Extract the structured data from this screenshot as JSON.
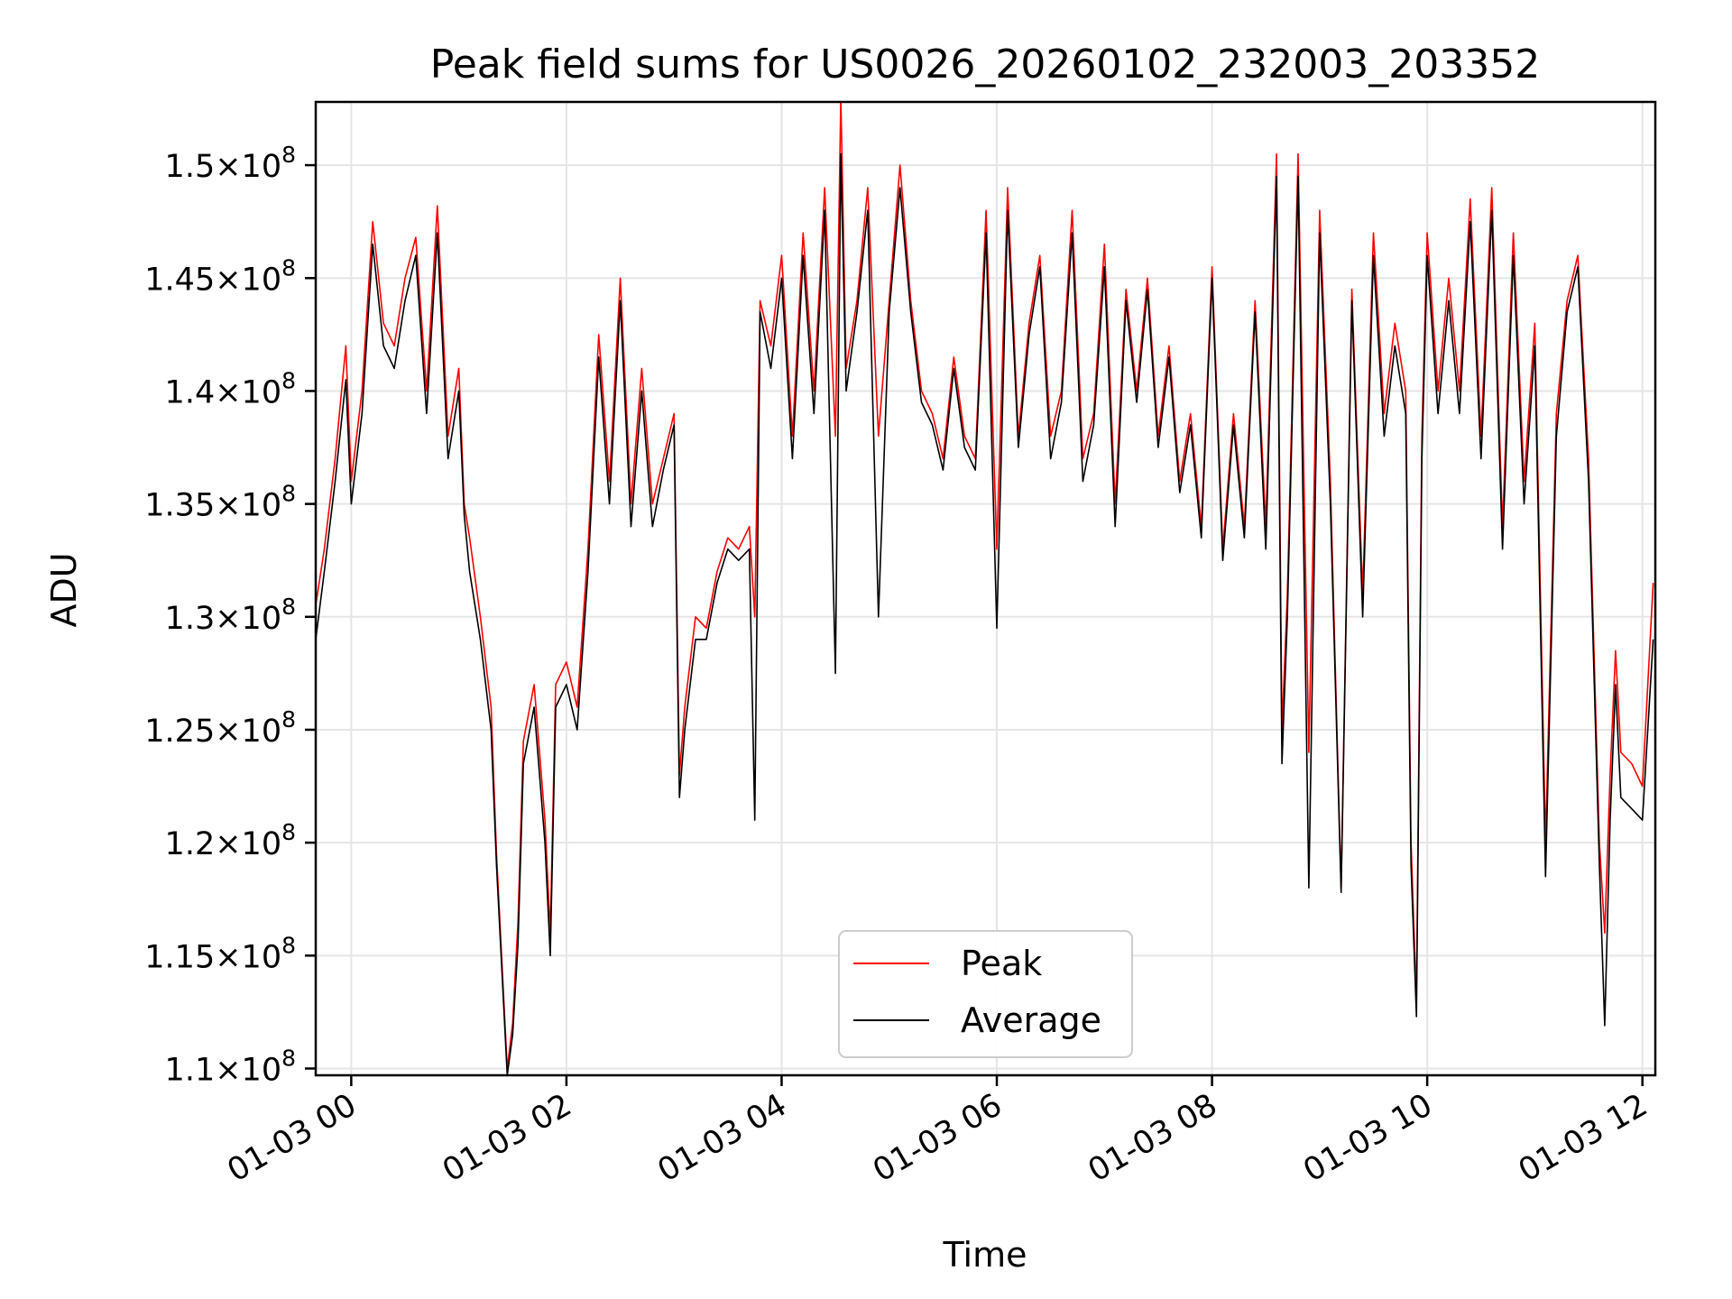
{
  "chart_data": {
    "type": "line",
    "title": "Peak field sums for US0026_20260102_232003_203352",
    "xlabel": "Time",
    "ylabel": "ADU",
    "grid": true,
    "legend_placement": "lower-center",
    "x_unit": "hours since 01-03 00:00",
    "xlim": [
      -0.33,
      12.12
    ],
    "ylim": [
      109700000.0,
      152800000.0
    ],
    "x_ticks": [
      {
        "value": 0,
        "label": "01-03 00"
      },
      {
        "value": 2,
        "label": "01-03 02"
      },
      {
        "value": 4,
        "label": "01-03 04"
      },
      {
        "value": 6,
        "label": "01-03 06"
      },
      {
        "value": 8,
        "label": "01-03 08"
      },
      {
        "value": 10,
        "label": "01-03 10"
      },
      {
        "value": 12,
        "label": "01-03 12"
      }
    ],
    "y_ticks": [
      {
        "value": 110000000.0,
        "mantissa": "1.1",
        "base": "10",
        "exp": "8"
      },
      {
        "value": 115000000.0,
        "mantissa": "1.15",
        "base": "10",
        "exp": "8"
      },
      {
        "value": 120000000.0,
        "mantissa": "1.2",
        "base": "10",
        "exp": "8"
      },
      {
        "value": 125000000.0,
        "mantissa": "1.25",
        "base": "10",
        "exp": "8"
      },
      {
        "value": 130000000.0,
        "mantissa": "1.3",
        "base": "10",
        "exp": "8"
      },
      {
        "value": 135000000.0,
        "mantissa": "1.35",
        "base": "10",
        "exp": "8"
      },
      {
        "value": 140000000.0,
        "mantissa": "1.4",
        "base": "10",
        "exp": "8"
      },
      {
        "value": 145000000.0,
        "mantissa": "1.45",
        "base": "10",
        "exp": "8"
      },
      {
        "value": 150000000.0,
        "mantissa": "1.5",
        "base": "10",
        "exp": "8"
      }
    ],
    "legend": [
      {
        "name": "Peak",
        "color": "#ff0000"
      },
      {
        "name": "Average",
        "color": "#000000"
      }
    ],
    "x": [
      -0.33,
      -0.25,
      -0.15,
      -0.05,
      0.0,
      0.1,
      0.2,
      0.3,
      0.4,
      0.5,
      0.6,
      0.7,
      0.8,
      0.9,
      1.0,
      1.05,
      1.1,
      1.2,
      1.3,
      1.35,
      1.45,
      1.5,
      1.55,
      1.6,
      1.7,
      1.8,
      1.85,
      1.9,
      2.0,
      2.1,
      2.2,
      2.3,
      2.4,
      2.5,
      2.6,
      2.7,
      2.8,
      2.9,
      3.0,
      3.05,
      3.1,
      3.2,
      3.3,
      3.4,
      3.5,
      3.6,
      3.7,
      3.75,
      3.8,
      3.9,
      4.0,
      4.1,
      4.2,
      4.3,
      4.4,
      4.5,
      4.55,
      4.6,
      4.7,
      4.8,
      4.9,
      5.0,
      5.1,
      5.2,
      5.3,
      5.4,
      5.5,
      5.6,
      5.7,
      5.8,
      5.9,
      6.0,
      6.1,
      6.2,
      6.3,
      6.4,
      6.5,
      6.6,
      6.7,
      6.8,
      6.9,
      7.0,
      7.1,
      7.2,
      7.3,
      7.4,
      7.5,
      7.6,
      7.7,
      7.8,
      7.9,
      8.0,
      8.1,
      8.2,
      8.3,
      8.4,
      8.5,
      8.6,
      8.65,
      8.7,
      8.8,
      8.9,
      9.0,
      9.1,
      9.2,
      9.3,
      9.4,
      9.5,
      9.6,
      9.7,
      9.8,
      9.85,
      9.9,
      9.95,
      10.0,
      10.1,
      10.2,
      10.3,
      10.4,
      10.5,
      10.6,
      10.7,
      10.8,
      10.9,
      11.0,
      11.1,
      11.2,
      11.3,
      11.4,
      11.5,
      11.6,
      11.65,
      11.7,
      11.75,
      11.8,
      11.9,
      12.0,
      12.1
    ],
    "series": [
      {
        "name": "Peak",
        "color": "#ff0000",
        "values": [
          130500000.0,
          133000000.0,
          137000000.0,
          142000000.0,
          136000000.0,
          140000000.0,
          147500000.0,
          143000000.0,
          142000000.0,
          145000000.0,
          146800000.0,
          140000000.0,
          148200000.0,
          138000000.0,
          141000000.0,
          135000000.0,
          133500000.0,
          130000000.0,
          126000000.0,
          119500000.0,
          110000000.0,
          112000000.0,
          116500000.0,
          124500000.0,
          127000000.0,
          121000000.0,
          116000000.0,
          127000000.0,
          128000000.0,
          126000000.0,
          133000000.0,
          142500000.0,
          136000000.0,
          145000000.0,
          135000000.0,
          141000000.0,
          135000000.0,
          137000000.0,
          139000000.0,
          123000000.0,
          126000000.0,
          130000000.0,
          129500000.0,
          132000000.0,
          133500000.0,
          133000000.0,
          134000000.0,
          130000000.0,
          144000000.0,
          142000000.0,
          146000000.0,
          138000000.0,
          147000000.0,
          140000000.0,
          149000000.0,
          138000000.0,
          153000000.0,
          141000000.0,
          144000000.0,
          149000000.0,
          138000000.0,
          144000000.0,
          150000000.0,
          144000000.0,
          140000000.0,
          139000000.0,
          137000000.0,
          141500000.0,
          138000000.0,
          137000000.0,
          148000000.0,
          133000000.0,
          149000000.0,
          138000000.0,
          143000000.0,
          146000000.0,
          138000000.0,
          140000000.0,
          148000000.0,
          137000000.0,
          139000000.0,
          146500000.0,
          135000000.0,
          144500000.0,
          140000000.0,
          145000000.0,
          138000000.0,
          142000000.0,
          136000000.0,
          139000000.0,
          134000000.0,
          145500000.0,
          133000000.0,
          139000000.0,
          134000000.0,
          144000000.0,
          134000000.0,
          150500000.0,
          125000000.0,
          131000000.0,
          150500000.0,
          124000000.0,
          148000000.0,
          136000000.0,
          118000000.0,
          144500000.0,
          131000000.0,
          147000000.0,
          139000000.0,
          143000000.0,
          140000000.0,
          120000000.0,
          113000000.0,
          138000000.0,
          147000000.0,
          140000000.0,
          145000000.0,
          140000000.0,
          148500000.0,
          138000000.0,
          149000000.0,
          134000000.0,
          147000000.0,
          136000000.0,
          143000000.0,
          120000000.0,
          139000000.0,
          144000000.0,
          146000000.0,
          137000000.0,
          120000000.0,
          116000000.0,
          123000000.0,
          128500000.0,
          124000000.0,
          123500000.0,
          122500000.0,
          131500000.0
        ]
      },
      {
        "name": "Average",
        "color": "#000000",
        "values": [
          129000000.0,
          132000000.0,
          136000000.0,
          140500000.0,
          135000000.0,
          139000000.0,
          146500000.0,
          142000000.0,
          141000000.0,
          144000000.0,
          146000000.0,
          139000000.0,
          147000000.0,
          137000000.0,
          140000000.0,
          134500000.0,
          132000000.0,
          129000000.0,
          125000000.0,
          119000000.0,
          109700000.0,
          111500000.0,
          115500000.0,
          123500000.0,
          126000000.0,
          120000000.0,
          115000000.0,
          126000000.0,
          127000000.0,
          125000000.0,
          132000000.0,
          141500000.0,
          135000000.0,
          144000000.0,
          134000000.0,
          140000000.0,
          134000000.0,
          136500000.0,
          138500000.0,
          122000000.0,
          125000000.0,
          129000000.0,
          129000000.0,
          131500000.0,
          133000000.0,
          132500000.0,
          133000000.0,
          121000000.0,
          143500000.0,
          141000000.0,
          145000000.0,
          137000000.0,
          146000000.0,
          139000000.0,
          148000000.0,
          127500000.0,
          150500000.0,
          140000000.0,
          143500000.0,
          148000000.0,
          130000000.0,
          143500000.0,
          149000000.0,
          143500000.0,
          139500000.0,
          138500000.0,
          136500000.0,
          141000000.0,
          137500000.0,
          136500000.0,
          147000000.0,
          129500000.0,
          148000000.0,
          137500000.0,
          142500000.0,
          145500000.0,
          137000000.0,
          139500000.0,
          147000000.0,
          136000000.0,
          138500000.0,
          145500000.0,
          134000000.0,
          144000000.0,
          139500000.0,
          144500000.0,
          137500000.0,
          141500000.0,
          135500000.0,
          138500000.0,
          133500000.0,
          145000000.0,
          132500000.0,
          138500000.0,
          133500000.0,
          143500000.0,
          133000000.0,
          149500000.0,
          123500000.0,
          130000000.0,
          149500000.0,
          118000000.0,
          147000000.0,
          135000000.0,
          117800000.0,
          144000000.0,
          130000000.0,
          146000000.0,
          138000000.0,
          142000000.0,
          139000000.0,
          119000000.0,
          112300000.0,
          137000000.0,
          146000000.0,
          139000000.0,
          144000000.0,
          139000000.0,
          147500000.0,
          137000000.0,
          148000000.0,
          133000000.0,
          146000000.0,
          135000000.0,
          142000000.0,
          118500000.0,
          138000000.0,
          143500000.0,
          145500000.0,
          136000000.0,
          119000000.0,
          111900000.0,
          121000000.0,
          127000000.0,
          122000000.0,
          121500000.0,
          121000000.0,
          129000000.0
        ]
      }
    ]
  }
}
